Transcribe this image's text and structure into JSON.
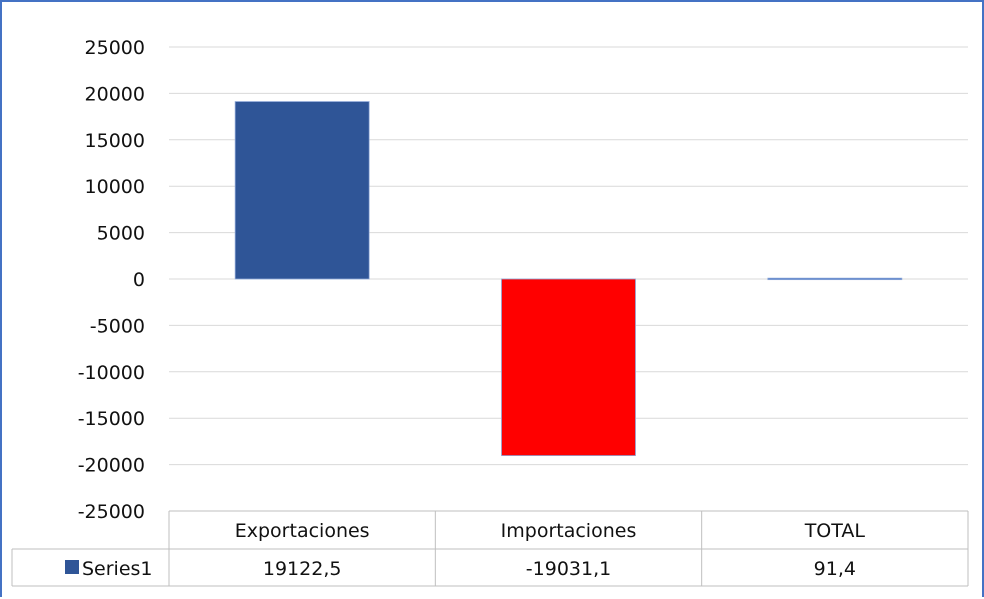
{
  "chart_data": {
    "type": "bar",
    "categories": [
      "Exportaciones",
      "Importaciones",
      "TOTAL"
    ],
    "series": [
      {
        "name": "Series1",
        "values": [
          19122.5,
          -19031.1,
          91.4
        ],
        "value_labels": [
          "19122,5",
          "-19031,1",
          "91,4"
        ],
        "colors": [
          "#2F5597",
          "#FF0000",
          "#4472C4"
        ]
      }
    ],
    "ylim": [
      -25000,
      25000
    ],
    "yticks": [
      25000,
      20000,
      15000,
      10000,
      5000,
      0,
      -5000,
      -10000,
      -15000,
      -20000,
      -25000
    ],
    "grid": true,
    "data_table": true,
    "legend_key_color": "#2F5597",
    "gridline_color": "#D9D9D9",
    "frame_color": "#4472C4"
  }
}
